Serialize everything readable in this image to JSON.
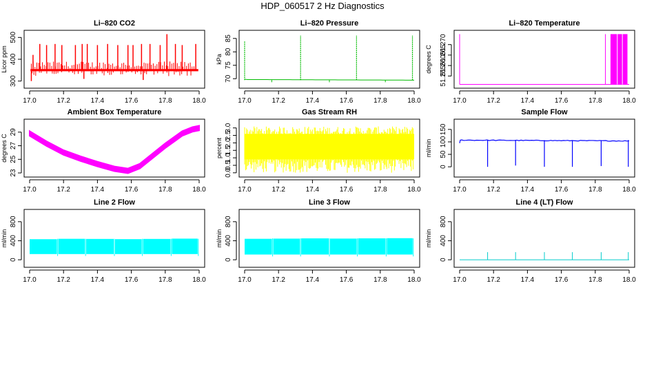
{
  "page_title": "HDP_060517  2 Hz Diagnostics",
  "chart_data": [
    {
      "type": "line",
      "title": "Li–820 CO2",
      "xlabel": "",
      "ylabel": "Licor ppm",
      "color": "#ff0000",
      "xlim": [
        17.0,
        18.0
      ],
      "ylim": [
        280,
        520
      ],
      "xticks": [
        17.0,
        17.2,
        17.4,
        17.6,
        17.8,
        18.0
      ],
      "xtick_labels": [
        "17.0",
        "17.2",
        "17.4",
        "17.6",
        "17.8",
        "18.0"
      ],
      "yticks": [
        300,
        400,
        500
      ],
      "ytick_labels": [
        "300",
        "400",
        "500"
      ],
      "baseline": 350,
      "band_half_width": 5,
      "spikes": [
        {
          "x": 17.02,
          "y": 420
        },
        {
          "x": 17.06,
          "y": 470
        },
        {
          "x": 17.1,
          "y": 465
        },
        {
          "x": 17.15,
          "y": 470
        },
        {
          "x": 17.19,
          "y": 465
        },
        {
          "x": 17.27,
          "y": 465
        },
        {
          "x": 17.31,
          "y": 470
        },
        {
          "x": 17.34,
          "y": 470
        },
        {
          "x": 17.4,
          "y": 465
        },
        {
          "x": 17.46,
          "y": 470
        },
        {
          "x": 17.52,
          "y": 465
        },
        {
          "x": 17.58,
          "y": 465
        },
        {
          "x": 17.61,
          "y": 465
        },
        {
          "x": 17.66,
          "y": 470
        },
        {
          "x": 17.71,
          "y": 470
        },
        {
          "x": 17.77,
          "y": 465
        },
        {
          "x": 17.81,
          "y": 515
        },
        {
          "x": 17.86,
          "y": 470
        },
        {
          "x": 17.9,
          "y": 465
        },
        {
          "x": 17.98,
          "y": 470
        }
      ],
      "dips": [
        {
          "x": 17.01,
          "y": 300
        },
        {
          "x": 17.32,
          "y": 310
        },
        {
          "x": 17.67,
          "y": 305
        }
      ]
    },
    {
      "type": "line",
      "title": "Li–820 Pressure",
      "xlabel": "",
      "ylabel": "kPa",
      "color": "#00bb00",
      "xlim": [
        17.0,
        18.0
      ],
      "ylim": [
        67.5,
        87
      ],
      "xticks": [
        17.0,
        17.2,
        17.4,
        17.6,
        17.8,
        18.0
      ],
      "xtick_labels": [
        "17.0",
        "17.2",
        "17.4",
        "17.6",
        "17.8",
        "18.0"
      ],
      "yticks": [
        70,
        75,
        80,
        85
      ],
      "ytick_labels": [
        "70",
        "75",
        "80",
        "85"
      ],
      "baseline": 69.5,
      "spikes": [
        {
          "x": 17.0,
          "y": 84
        },
        {
          "x": 17.33,
          "y": 86
        },
        {
          "x": 17.66,
          "y": 86
        },
        {
          "x": 17.99,
          "y": 86
        }
      ]
    },
    {
      "type": "line",
      "title": "Li–820 Temperature",
      "xlabel": "",
      "ylabel": "degrees C",
      "color": "#ff00ff",
      "xlim": [
        17.0,
        18.0
      ],
      "ylim": [
        51.2505,
        51.2755
      ],
      "xticks": [
        17.0,
        17.2,
        17.4,
        17.6,
        17.8,
        18.0
      ],
      "xtick_labels": [
        "17.0",
        "17.2",
        "17.4",
        "17.6",
        "17.8",
        "18.0"
      ],
      "yticks": [
        51.255,
        51.26,
        51.265,
        51.27
      ],
      "ytick_labels": [
        "51.255",
        "51.260",
        "51.265",
        "51.270"
      ],
      "low": 51.251,
      "high": 51.275,
      "spikes": [
        {
          "x": 17.0
        },
        {
          "x": 17.86
        }
      ],
      "oscillation_range": [
        17.89,
        17.99
      ]
    },
    {
      "type": "line",
      "title": "Ambient Box Temperature",
      "xlabel": "",
      "ylabel": "degrees C",
      "color": "#ff00ff",
      "xlim": [
        17.0,
        18.0
      ],
      "ylim": [
        22.8,
        30.5
      ],
      "xticks": [
        17.0,
        17.2,
        17.4,
        17.6,
        17.8,
        18.0
      ],
      "xtick_labels": [
        "17.0",
        "17.2",
        "17.4",
        "17.6",
        "17.8",
        "18.0"
      ],
      "yticks": [
        23,
        25,
        27,
        29
      ],
      "ytick_labels": [
        "23",
        "25",
        "27",
        "29"
      ],
      "band_half_width": 0.35,
      "curve": [
        {
          "x": 17.0,
          "y": 28.8
        },
        {
          "x": 17.1,
          "y": 27.3
        },
        {
          "x": 17.2,
          "y": 26.0
        },
        {
          "x": 17.3,
          "y": 25.1
        },
        {
          "x": 17.4,
          "y": 24.3
        },
        {
          "x": 17.5,
          "y": 23.6
        },
        {
          "x": 17.58,
          "y": 23.3
        },
        {
          "x": 17.65,
          "y": 24.0
        },
        {
          "x": 17.7,
          "y": 25.0
        },
        {
          "x": 17.8,
          "y": 27.0
        },
        {
          "x": 17.9,
          "y": 28.8
        },
        {
          "x": 17.96,
          "y": 29.4
        },
        {
          "x": 18.0,
          "y": 29.6
        }
      ]
    },
    {
      "type": "line",
      "title": "Gas Stream RH",
      "xlabel": "",
      "ylabel": "percent",
      "color": "#ffff00",
      "xlim": [
        17.0,
        18.0
      ],
      "ylim": [
        -0.1,
        3.4
      ],
      "xticks": [
        17.0,
        17.2,
        17.4,
        17.6,
        17.8,
        18.0
      ],
      "xtick_labels": [
        "17.0",
        "17.2",
        "17.4",
        "17.6",
        "17.8",
        "18.0"
      ],
      "yticks": [
        0.0,
        0.5,
        1.0,
        1.5,
        2.0,
        2.5,
        3.0
      ],
      "ytick_labels": [
        "0.0",
        "0.5",
        "1.0",
        "1.5",
        "2.0",
        "2.5",
        "3.0"
      ],
      "band": [
        0.9,
        2.6
      ],
      "noise_range": [
        0.0,
        3.3
      ]
    },
    {
      "type": "line",
      "title": "Sample Flow",
      "xlabel": "",
      "ylabel": "ml/min",
      "color": "#0000ff",
      "xlim": [
        17.0,
        18.0
      ],
      "ylim": [
        -30,
        180
      ],
      "xticks": [
        17.0,
        17.2,
        17.4,
        17.6,
        17.8,
        18.0
      ],
      "xtick_labels": [
        "17.0",
        "17.2",
        "17.4",
        "17.6",
        "17.8",
        "18.0"
      ],
      "yticks": [
        0,
        50,
        100,
        150
      ],
      "ytick_labels": [
        "0",
        "50",
        "100",
        "150"
      ],
      "baseline": 107,
      "drops": [
        {
          "x": 17.165,
          "y": 0
        },
        {
          "x": 17.33,
          "y": 5
        },
        {
          "x": 17.5,
          "y": 0
        },
        {
          "x": 17.665,
          "y": 0
        },
        {
          "x": 17.835,
          "y": 3
        },
        {
          "x": 17.995,
          "y": 0
        }
      ]
    },
    {
      "type": "area",
      "title": "Line 2 Flow",
      "xlabel": "",
      "ylabel": "ml/min",
      "color": "#00ffff",
      "xlim": [
        17.0,
        18.0
      ],
      "ylim": [
        -100,
        1000
      ],
      "xticks": [
        17.0,
        17.2,
        17.4,
        17.6,
        17.8,
        18.0
      ],
      "xtick_labels": [
        "17.0",
        "17.2",
        "17.4",
        "17.6",
        "17.8",
        "18.0"
      ],
      "yticks": [
        0,
        400,
        800
      ],
      "ytick_labels": [
        "0",
        "400",
        "800"
      ],
      "band": [
        120,
        440
      ],
      "gaps": [
        17.165,
        17.33,
        17.5,
        17.665,
        17.835,
        17.995
      ]
    },
    {
      "type": "area",
      "title": "Line 3 Flow",
      "xlabel": "",
      "ylabel": "ml/min",
      "color": "#00ffff",
      "xlim": [
        17.0,
        18.0
      ],
      "ylim": [
        -100,
        1000
      ],
      "xticks": [
        17.0,
        17.2,
        17.4,
        17.6,
        17.8,
        18.0
      ],
      "xtick_labels": [
        "17.0",
        "17.2",
        "17.4",
        "17.6",
        "17.8",
        "18.0"
      ],
      "yticks": [
        0,
        400,
        800
      ],
      "ytick_labels": [
        "0",
        "400",
        "800"
      ],
      "band": [
        110,
        450
      ],
      "gaps": [
        17.165,
        17.33,
        17.5,
        17.665,
        17.835,
        17.995
      ]
    },
    {
      "type": "line",
      "title": "Line 4 (LT) Flow",
      "xlabel": "",
      "ylabel": "ml/min",
      "color": "#00cccc",
      "xlim": [
        17.0,
        18.0
      ],
      "ylim": [
        -100,
        1000
      ],
      "xticks": [
        17.0,
        17.2,
        17.4,
        17.6,
        17.8,
        18.0
      ],
      "xtick_labels": [
        "17.0",
        "17.2",
        "17.4",
        "17.6",
        "17.8",
        "18.0"
      ],
      "yticks": [
        0,
        400,
        800
      ],
      "ytick_labels": [
        "0",
        "400",
        "800"
      ],
      "baseline": 0,
      "spikes": [
        {
          "x": 17.165,
          "y": 160
        },
        {
          "x": 17.33,
          "y": 160
        },
        {
          "x": 17.5,
          "y": 160
        },
        {
          "x": 17.665,
          "y": 160
        },
        {
          "x": 17.835,
          "y": 160
        },
        {
          "x": 17.995,
          "y": 160
        }
      ]
    }
  ]
}
